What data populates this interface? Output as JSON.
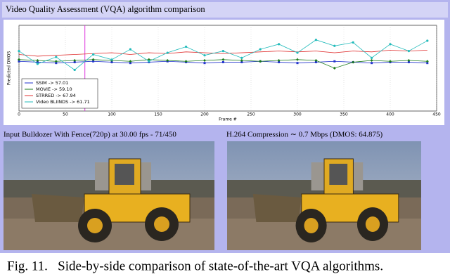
{
  "header": {
    "title": "Video Quality Assessment (VQA) algorithm comparison"
  },
  "chart_data": {
    "type": "line",
    "x_label": "Frame #",
    "y_label": "Predicted DMOS",
    "x": [
      0,
      20,
      40,
      60,
      80,
      100,
      120,
      140,
      160,
      180,
      200,
      220,
      240,
      260,
      280,
      300,
      320,
      340,
      360,
      380,
      400,
      420,
      440
    ],
    "series": [
      {
        "name": "SSIM -> 57.01",
        "color": "#2233cc",
        "marker": "square",
        "values": [
          58,
          57,
          56,
          57,
          58,
          57,
          56,
          57,
          58,
          57,
          56,
          57,
          57,
          58,
          57,
          56,
          57,
          58,
          57,
          56,
          57,
          57,
          56
        ]
      },
      {
        "name": "MOVIE -> 59.10",
        "color": "#1a7a1a",
        "marker": "diamond",
        "values": [
          60,
          59,
          58,
          59,
          60,
          59,
          58,
          60,
          59,
          58,
          59,
          60,
          59,
          58,
          59,
          60,
          59,
          50,
          57,
          59,
          58,
          59,
          58
        ]
      },
      {
        "name": "STRRED -> 67.94",
        "color": "#e03030",
        "marker": "none",
        "values": [
          66,
          64,
          65,
          66,
          67,
          68,
          66,
          68,
          67,
          69,
          68,
          67,
          68,
          69,
          70,
          69,
          70,
          68,
          70,
          69,
          71,
          70,
          71
        ]
      },
      {
        "name": "Video BLIINDS -> 61.71",
        "color": "#22bbbb",
        "marker": "circle",
        "values": [
          70,
          55,
          63,
          48,
          66,
          60,
          72,
          58,
          68,
          75,
          65,
          70,
          62,
          72,
          78,
          68,
          83,
          76,
          80,
          62,
          78,
          70,
          82
        ]
      }
    ],
    "xlim": [
      0,
      450
    ],
    "xticks": [
      0,
      50,
      100,
      150,
      200,
      250,
      300,
      350,
      400,
      450
    ],
    "ylim": [
      0,
      100
    ],
    "marker_x": 71,
    "grid": true
  },
  "captions": {
    "left": "Input Bulldozer With Fence(720p) at 30.00 fps - 71/450",
    "right": "H.264 Compression ∼ 0.7 Mbps (DMOS: 64.875)"
  },
  "figure_caption": "Fig. 11.   Side-by-side comparison of state-of-the-art VQA algorithms."
}
